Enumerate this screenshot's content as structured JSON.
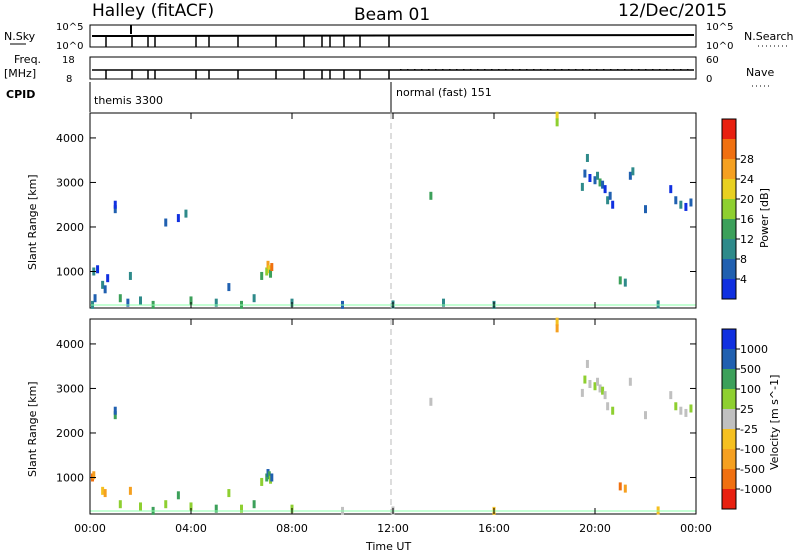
{
  "header": {
    "station": "Halley (fitACF)",
    "beam": "Beam 01",
    "date": "12/Dec/2015"
  },
  "strip_panels": {
    "nsky_label": "N.Sky",
    "nsky_ticks": [
      "10^5",
      "10^0"
    ],
    "nsearch_label": "N.Search",
    "nsearch_ticks": [
      "10^5",
      "10^0"
    ],
    "freq_label_1": "Freq.",
    "freq_label_2": "[MHz]",
    "freq_ticks": [
      "18",
      "8"
    ],
    "nave_label": "Nave",
    "nave_ticks": [
      "60",
      "0"
    ],
    "cpid_label": "CPID",
    "cpid_modes": [
      "themis 3300",
      "normal (fast) 151"
    ]
  },
  "chart_data": [
    {
      "type": "heatmap",
      "name": "power",
      "ylabel": "Slant Range [km]",
      "ylim": [
        180,
        4560
      ],
      "yticks": [
        1000,
        2000,
        3000,
        4000
      ],
      "xlim_hours": [
        0,
        24
      ],
      "colorbar": {
        "label": "Power [dB]",
        "ticks": [
          "4",
          "8",
          "12",
          "16",
          "20",
          "24",
          "28"
        ],
        "colors": [
          "#1030e0",
          "#2060b0",
          "#2e8a8a",
          "#3ca05a",
          "#8ecf30",
          "#e8d020",
          "#f5a020",
          "#f07010",
          "#e82010"
        ]
      },
      "cells": [
        [
          0.1,
          250,
          2
        ],
        [
          0.2,
          400,
          1
        ],
        [
          0.15,
          1000,
          2
        ],
        [
          0.3,
          1050,
          0
        ],
        [
          0.5,
          700,
          2
        ],
        [
          0.6,
          600,
          1
        ],
        [
          0.7,
          850,
          0
        ],
        [
          1.0,
          2400,
          1
        ],
        [
          1.0,
          2500,
          0
        ],
        [
          1.2,
          400,
          3
        ],
        [
          1.5,
          300,
          1
        ],
        [
          1.6,
          900,
          2
        ],
        [
          2.0,
          350,
          2
        ],
        [
          2.5,
          250,
          3
        ],
        [
          3.0,
          2100,
          1
        ],
        [
          3.5,
          2200,
          0
        ],
        [
          3.8,
          2300,
          2
        ],
        [
          4.0,
          350,
          3
        ],
        [
          5.0,
          300,
          2
        ],
        [
          5.5,
          650,
          1
        ],
        [
          6.0,
          250,
          3
        ],
        [
          6.5,
          400,
          2
        ],
        [
          6.8,
          900,
          3
        ],
        [
          7.0,
          1000,
          4
        ],
        [
          7.05,
          1150,
          6
        ],
        [
          7.1,
          1050,
          5
        ],
        [
          7.15,
          950,
          3
        ],
        [
          7.2,
          1100,
          7
        ],
        [
          8.0,
          300,
          2
        ],
        [
          10.0,
          250,
          1
        ],
        [
          12.0,
          260,
          2
        ],
        [
          13.5,
          2700,
          3
        ],
        [
          14.0,
          300,
          2
        ],
        [
          16.0,
          250,
          2
        ],
        [
          18.5,
          4500,
          5
        ],
        [
          18.5,
          4350,
          4
        ],
        [
          19.5,
          2900,
          2
        ],
        [
          19.6,
          3200,
          1
        ],
        [
          19.7,
          3550,
          2
        ],
        [
          19.8,
          3100,
          0
        ],
        [
          20.0,
          3050,
          1
        ],
        [
          20.1,
          3150,
          2
        ],
        [
          20.2,
          3000,
          3
        ],
        [
          20.3,
          2950,
          1
        ],
        [
          20.4,
          2850,
          0
        ],
        [
          20.5,
          2600,
          2
        ],
        [
          20.6,
          2700,
          1
        ],
        [
          20.7,
          2500,
          0
        ],
        [
          21.0,
          800,
          3
        ],
        [
          21.2,
          750,
          2
        ],
        [
          21.4,
          3150,
          1
        ],
        [
          21.5,
          3250,
          2
        ],
        [
          22.0,
          2400,
          1
        ],
        [
          22.5,
          260,
          2
        ],
        [
          23.0,
          2850,
          0
        ],
        [
          23.2,
          2600,
          1
        ],
        [
          23.4,
          2500,
          2
        ],
        [
          23.6,
          2450,
          0
        ],
        [
          23.8,
          2550,
          1
        ]
      ]
    },
    {
      "type": "heatmap",
      "name": "velocity",
      "ylabel": "Slant Range [km]",
      "xlabel": "Time UT",
      "ylim": [
        180,
        4560
      ],
      "yticks": [
        1000,
        2000,
        3000,
        4000
      ],
      "xlim_hours": [
        0,
        24
      ],
      "xtick_labels": [
        "00:00",
        "04:00",
        "08:00",
        "12:00",
        "16:00",
        "20:00",
        "00:00"
      ],
      "colorbar": {
        "label": "Velocity [m s^-1]",
        "ticks": [
          "1000",
          "500",
          "100",
          "25",
          "-25",
          "-100",
          "-500",
          "-1000"
        ],
        "colors": [
          "#1030e0",
          "#2060b0",
          "#3ca05a",
          "#8ecf30",
          "#c0c0c0",
          "#f5c020",
          "#f5a020",
          "#f07010",
          "#e82010"
        ]
      },
      "cells": [
        [
          0.1,
          1000,
          7
        ],
        [
          0.15,
          1050,
          6
        ],
        [
          0.5,
          700,
          5
        ],
        [
          0.6,
          650,
          6
        ],
        [
          1.0,
          2400,
          2
        ],
        [
          1.0,
          2500,
          1
        ],
        [
          1.2,
          400,
          3
        ],
        [
          1.6,
          700,
          6
        ],
        [
          2.0,
          350,
          3
        ],
        [
          2.5,
          250,
          2
        ],
        [
          3.0,
          400,
          3
        ],
        [
          3.5,
          600,
          2
        ],
        [
          4.0,
          350,
          3
        ],
        [
          5.0,
          300,
          2
        ],
        [
          5.5,
          650,
          3
        ],
        [
          6.0,
          300,
          3
        ],
        [
          6.5,
          400,
          2
        ],
        [
          6.8,
          900,
          3
        ],
        [
          7.0,
          1000,
          2
        ],
        [
          7.05,
          1100,
          1
        ],
        [
          7.1,
          1050,
          2
        ],
        [
          7.15,
          950,
          3
        ],
        [
          7.2,
          1000,
          1
        ],
        [
          8.0,
          300,
          3
        ],
        [
          10.0,
          250,
          4
        ],
        [
          12.0,
          260,
          4
        ],
        [
          13.5,
          2700,
          4
        ],
        [
          16.0,
          250,
          5
        ],
        [
          18.5,
          4500,
          5
        ],
        [
          18.5,
          4350,
          6
        ],
        [
          19.5,
          2900,
          4
        ],
        [
          19.6,
          3200,
          3
        ],
        [
          19.7,
          3550,
          4
        ],
        [
          19.8,
          3100,
          4
        ],
        [
          20.0,
          3050,
          3
        ],
        [
          20.1,
          3150,
          4
        ],
        [
          20.2,
          3000,
          4
        ],
        [
          20.3,
          2950,
          3
        ],
        [
          20.4,
          2850,
          4
        ],
        [
          20.5,
          2600,
          4
        ],
        [
          20.7,
          2500,
          3
        ],
        [
          21.0,
          800,
          7
        ],
        [
          21.2,
          750,
          6
        ],
        [
          21.4,
          3150,
          4
        ],
        [
          22.0,
          2400,
          4
        ],
        [
          22.5,
          260,
          5
        ],
        [
          23.0,
          2850,
          4
        ],
        [
          23.2,
          2600,
          3
        ],
        [
          23.4,
          2500,
          4
        ],
        [
          23.6,
          2450,
          4
        ],
        [
          23.8,
          2550,
          3
        ]
      ]
    }
  ]
}
